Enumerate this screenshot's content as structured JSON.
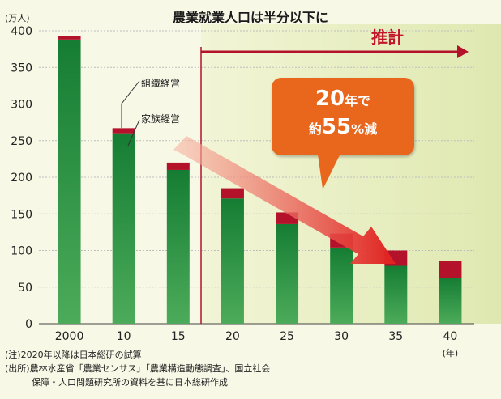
{
  "chart_data": {
    "type": "bar",
    "title": "農業就業人口は半分以下に",
    "unit_label": "(万人)",
    "x_unit_label": "(年)",
    "categories": [
      "2000",
      "10",
      "15",
      "20",
      "25",
      "30",
      "35",
      "40"
    ],
    "series": [
      {
        "name": "家族経営",
        "values": [
          388,
          260,
          210,
          171,
          136,
          104,
          79,
          62
        ],
        "color": "#1f8f3c"
      },
      {
        "name": "組織経営",
        "values": [
          5,
          7,
          10,
          14,
          16,
          19,
          21,
          24
        ],
        "color": "#b3122a"
      }
    ],
    "yticks": [
      0,
      50,
      100,
      150,
      200,
      250,
      300,
      350,
      400
    ],
    "ylim": [
      0,
      400
    ],
    "forecast_label": "推計",
    "forecast_start_after": "15",
    "callout": {
      "line1_num": "20",
      "line1_text": "年で",
      "line2_pre": "約",
      "line2_num": "55",
      "line2_text": "%減"
    }
  },
  "notes": [
    "(注)2020年以降は日本総研の試算",
    "(出所)農林水産省「農業センサス」「農業構造動態調査」、国立社会",
    "　　　保障・人口問題研究所の資料を基に日本総研作成"
  ]
}
